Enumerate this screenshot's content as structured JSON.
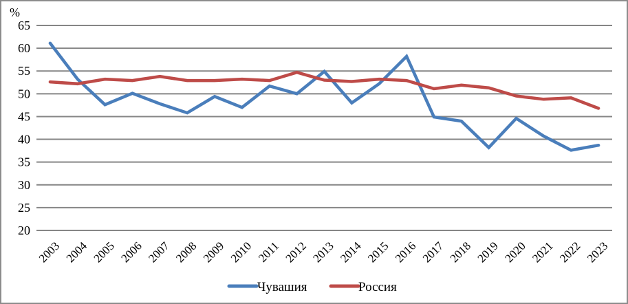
{
  "chart_data": {
    "type": "line",
    "title": "",
    "xlabel": "",
    "ylabel": "%",
    "ylim": [
      20,
      65
    ],
    "yticks": [
      20,
      25,
      30,
      35,
      40,
      45,
      50,
      55,
      60,
      65
    ],
    "grid": true,
    "legend_position": "bottom",
    "categories": [
      "2003",
      "2004",
      "2005",
      "2006",
      "2007",
      "2008",
      "2009",
      "2010",
      "2011",
      "2012",
      "2013",
      "2014",
      "2015",
      "2016",
      "2017",
      "2018",
      "2019",
      "2020",
      "2021",
      "2022",
      "2023"
    ],
    "series": [
      {
        "name": "Чувашия",
        "color": "#4a7ebb",
        "values": [
          61.1,
          53.2,
          47.6,
          50.1,
          47.8,
          45.8,
          49.4,
          47.0,
          51.7,
          50.0,
          54.9,
          48.0,
          52.2,
          58.2,
          44.9,
          44.0,
          38.2,
          44.6,
          40.7,
          37.6,
          38.7
        ]
      },
      {
        "name": "Россия",
        "color": "#be4b48",
        "values": [
          52.6,
          52.2,
          53.2,
          52.9,
          53.8,
          52.9,
          52.9,
          53.2,
          52.9,
          54.7,
          53.0,
          52.7,
          53.2,
          52.9,
          51.1,
          51.9,
          51.3,
          49.5,
          48.8,
          49.1,
          46.8
        ]
      }
    ]
  },
  "colors": {
    "grid": "#868686",
    "border": "#8c8c8c"
  }
}
